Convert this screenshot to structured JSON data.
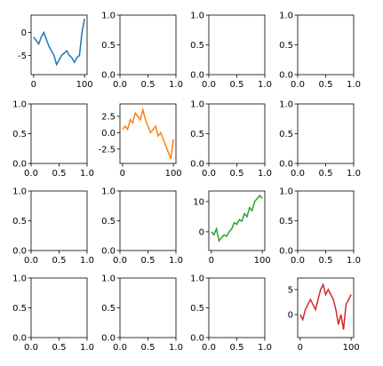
{
  "chart_data": [
    {
      "type": "line",
      "x": [
        0,
        5,
        10,
        15,
        20,
        25,
        30,
        35,
        40,
        45,
        50,
        55,
        60,
        65,
        70,
        75,
        80,
        85,
        90,
        95,
        100
      ],
      "series": [
        {
          "color": "#1f77b4",
          "values": [
            -1,
            -1.8,
            -2.5,
            -1,
            0,
            -1.5,
            -3,
            -4,
            -5,
            -7,
            -6,
            -5,
            -4.5,
            -4,
            -5,
            -5.5,
            -6.5,
            -5.5,
            -5,
            0,
            3
          ]
        }
      ],
      "xlim": [
        -5,
        105
      ],
      "ylim": [
        -9.2,
        3.8
      ],
      "xticks": [
        0,
        100
      ],
      "yticks": [
        0,
        -5
      ]
    },
    {
      "type": "line",
      "xlim": [
        0,
        1
      ],
      "ylim": [
        0,
        1
      ],
      "xticks": [
        {
          "value": 0,
          "label": "0.0"
        },
        0.5,
        {
          "value": 1,
          "label": "1.0"
        }
      ],
      "yticks": [
        {
          "value": 0,
          "label": "0.0"
        },
        0.5,
        {
          "value": 1,
          "label": "1.0"
        }
      ]
    },
    {
      "type": "line",
      "xlim": [
        0,
        1
      ],
      "ylim": [
        0,
        1
      ],
      "xticks": [
        {
          "value": 0,
          "label": "0.0"
        },
        0.5,
        {
          "value": 1,
          "label": "1.0"
        }
      ],
      "yticks": [
        {
          "value": 0,
          "label": "0.0"
        },
        0.5,
        {
          "value": 1,
          "label": "1.0"
        }
      ]
    },
    {
      "type": "line",
      "xlim": [
        0,
        1
      ],
      "ylim": [
        0,
        1
      ],
      "xticks": [
        {
          "value": 0,
          "label": "0.0"
        },
        0.5,
        {
          "value": 1,
          "label": "1.0"
        }
      ],
      "yticks": [
        {
          "value": 0,
          "label": "0.0"
        },
        0.5,
        {
          "value": 1,
          "label": "1.0"
        }
      ]
    },
    {
      "type": "line",
      "xlim": [
        0,
        1
      ],
      "ylim": [
        0,
        1
      ],
      "xticks": [
        {
          "value": 0,
          "label": "0.0"
        },
        0.5,
        {
          "value": 1,
          "label": "1.0"
        }
      ],
      "yticks": [
        {
          "value": 0,
          "label": "0.0"
        },
        0.5,
        {
          "value": 1,
          "label": "1.0"
        }
      ]
    },
    {
      "type": "line",
      "x": [
        0,
        5,
        10,
        15,
        20,
        25,
        30,
        35,
        40,
        45,
        50,
        55,
        60,
        65,
        70,
        75,
        80,
        85,
        90,
        95,
        100
      ],
      "series": [
        {
          "color": "#ff7f0e",
          "values": [
            0.5,
            1,
            0.5,
            2,
            1.5,
            3,
            2.5,
            2,
            3.5,
            2,
            1,
            0,
            0.5,
            1,
            -0.5,
            0,
            -1,
            -2,
            -3,
            -4,
            -1
          ]
        }
      ],
      "xlim": [
        -5,
        105
      ],
      "ylim": [
        -4.7,
        4.4
      ],
      "xticks": [
        0,
        100
      ],
      "yticks": [
        2.5,
        {
          "value": 0,
          "label": "0.0"
        },
        -2.5
      ]
    },
    {
      "type": "line",
      "xlim": [
        0,
        1
      ],
      "ylim": [
        0,
        1
      ],
      "xticks": [
        {
          "value": 0,
          "label": "0.0"
        },
        0.5,
        {
          "value": 1,
          "label": "1.0"
        }
      ],
      "yticks": [
        {
          "value": 0,
          "label": "0.0"
        },
        0.5,
        {
          "value": 1,
          "label": "1.0"
        }
      ]
    },
    {
      "type": "line",
      "xlim": [
        0,
        1
      ],
      "ylim": [
        0,
        1
      ],
      "xticks": [
        {
          "value": 0,
          "label": "0.0"
        },
        0.5,
        {
          "value": 1,
          "label": "1.0"
        }
      ],
      "yticks": [
        {
          "value": 0,
          "label": "0.0"
        },
        0.5,
        {
          "value": 1,
          "label": "1.0"
        }
      ]
    },
    {
      "type": "line",
      "xlim": [
        0,
        1
      ],
      "ylim": [
        0,
        1
      ],
      "xticks": [
        {
          "value": 0,
          "label": "0.0"
        },
        0.5,
        {
          "value": 1,
          "label": "1.0"
        }
      ],
      "yticks": [
        {
          "value": 0,
          "label": "0.0"
        },
        0.5,
        {
          "value": 1,
          "label": "1.0"
        }
      ]
    },
    {
      "type": "line",
      "xlim": [
        0,
        1
      ],
      "ylim": [
        0,
        1
      ],
      "xticks": [
        {
          "value": 0,
          "label": "0.0"
        },
        0.5,
        {
          "value": 1,
          "label": "1.0"
        }
      ],
      "yticks": [
        {
          "value": 0,
          "label": "0.0"
        },
        0.5,
        {
          "value": 1,
          "label": "1.0"
        }
      ]
    },
    {
      "type": "line",
      "x": [
        0,
        5,
        10,
        15,
        20,
        25,
        30,
        35,
        40,
        45,
        50,
        55,
        60,
        65,
        70,
        75,
        80,
        85,
        90,
        95,
        100
      ],
      "series": [
        {
          "color": "#2ca02c",
          "values": [
            0,
            -1,
            1,
            -3,
            -2,
            -1,
            -1.5,
            0,
            1,
            3,
            2.5,
            4,
            3.5,
            6,
            5,
            8,
            7,
            10,
            11,
            12,
            11
          ]
        }
      ],
      "xlim": [
        -5,
        105
      ],
      "ylim": [
        -6.2,
        13.5
      ],
      "xticks": [
        0,
        100
      ],
      "yticks": [
        10,
        0
      ]
    },
    {
      "type": "line",
      "xlim": [
        0,
        1
      ],
      "ylim": [
        0,
        1
      ],
      "xticks": [
        {
          "value": 0,
          "label": "0.0"
        },
        0.5,
        {
          "value": 1,
          "label": "1.0"
        }
      ],
      "yticks": [
        {
          "value": 0,
          "label": "0.0"
        },
        0.5,
        {
          "value": 1,
          "label": "1.0"
        }
      ]
    },
    {
      "type": "line",
      "xlim": [
        0,
        1
      ],
      "ylim": [
        0,
        1
      ],
      "xticks": [
        {
          "value": 0,
          "label": "0.0"
        },
        0.5,
        {
          "value": 1,
          "label": "1.0"
        }
      ],
      "yticks": [
        {
          "value": 0,
          "label": "0.0"
        },
        0.5,
        {
          "value": 1,
          "label": "1.0"
        }
      ]
    },
    {
      "type": "line",
      "xlim": [
        0,
        1
      ],
      "ylim": [
        0,
        1
      ],
      "xticks": [
        {
          "value": 0,
          "label": "0.0"
        },
        0.5,
        {
          "value": 1,
          "label": "1.0"
        }
      ],
      "yticks": [
        {
          "value": 0,
          "label": "0.0"
        },
        0.5,
        {
          "value": 1,
          "label": "1.0"
        }
      ]
    },
    {
      "type": "line",
      "xlim": [
        0,
        1
      ],
      "ylim": [
        0,
        1
      ],
      "xticks": [
        {
          "value": 0,
          "label": "0.0"
        },
        0.5,
        {
          "value": 1,
          "label": "1.0"
        }
      ],
      "yticks": [
        {
          "value": 0,
          "label": "0.0"
        },
        0.5,
        {
          "value": 1,
          "label": "1.0"
        }
      ]
    },
    {
      "type": "line",
      "x": [
        0,
        5,
        10,
        15,
        20,
        25,
        30,
        35,
        40,
        45,
        50,
        55,
        60,
        65,
        70,
        75,
        80,
        85,
        90,
        95,
        100
      ],
      "series": [
        {
          "color": "#d62728",
          "values": [
            0,
            -1,
            1,
            2,
            3,
            2,
            1,
            3,
            5,
            6,
            4,
            5,
            4,
            3,
            1,
            -2,
            0,
            -3,
            2,
            3,
            4
          ]
        }
      ],
      "xlim": [
        -5,
        105
      ],
      "ylim": [
        -4.6,
        7.3
      ],
      "xticks": [
        0,
        100
      ],
      "yticks": [
        5,
        0
      ]
    }
  ]
}
